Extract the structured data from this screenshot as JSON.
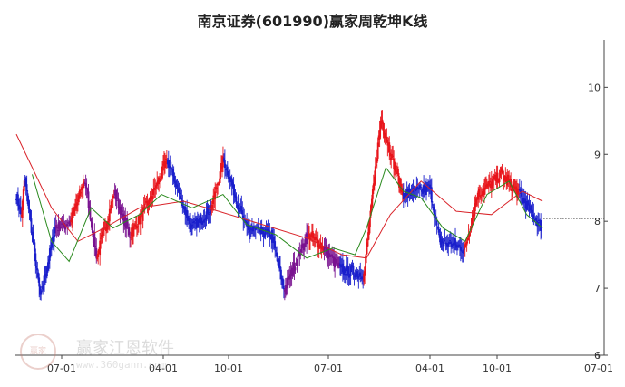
{
  "chart_data": {
    "type": "candlestick",
    "title": "南京证券(601990)赢家周乾坤K线",
    "xlabel": "",
    "ylabel": "",
    "x_ticks": [
      "07-01",
      "04-01",
      "10-01",
      "07-01",
      "04-01",
      "10-01",
      "07-01"
    ],
    "y_ticks": [
      6,
      7,
      8,
      9,
      10
    ],
    "ylim": [
      6,
      10.6
    ],
    "grid": false,
    "colors": {
      "up": "#e8151b",
      "down": "#1a1fcc",
      "neutral": "#7a1390",
      "ma_short": "#2a8a1e",
      "ma_long": "#d9242a",
      "axis": "#444444",
      "last_price_line": "#666666"
    },
    "segments": [
      {
        "x": [
          0,
          6
        ],
        "close": [
          8.4,
          8.1
        ],
        "color": "down"
      },
      {
        "x": [
          6,
          10
        ],
        "close": [
          8.1,
          8.6
        ],
        "color": "up"
      },
      {
        "x": [
          10,
          28
        ],
        "close": [
          8.6,
          6.9
        ],
        "color": "down"
      },
      {
        "x": [
          28,
          45
        ],
        "close": [
          6.9,
          7.9
        ],
        "color": "down"
      },
      {
        "x": [
          45,
          62
        ],
        "close": [
          7.9,
          8.0
        ],
        "color": "neutral"
      },
      {
        "x": [
          62,
          78
        ],
        "close": [
          8.0,
          8.6
        ],
        "color": "up"
      },
      {
        "x": [
          78,
          92
        ],
        "close": [
          8.6,
          7.5
        ],
        "color": "neutral"
      },
      {
        "x": [
          92,
          112
        ],
        "close": [
          7.5,
          8.4
        ],
        "color": "up"
      },
      {
        "x": [
          112,
          130
        ],
        "close": [
          8.4,
          7.8
        ],
        "color": "neutral"
      },
      {
        "x": [
          130,
          152
        ],
        "close": [
          7.8,
          8.3
        ],
        "color": "up"
      },
      {
        "x": [
          152,
          172
        ],
        "close": [
          8.3,
          8.9
        ],
        "color": "up"
      },
      {
        "x": [
          172,
          200
        ],
        "close": [
          8.9,
          7.9
        ],
        "color": "down"
      },
      {
        "x": [
          200,
          222
        ],
        "close": [
          7.9,
          8.2
        ],
        "color": "down"
      },
      {
        "x": [
          222,
          236
        ],
        "close": [
          8.2,
          8.9
        ],
        "color": "up"
      },
      {
        "x": [
          236,
          262
        ],
        "close": [
          8.9,
          7.9
        ],
        "color": "down"
      },
      {
        "x": [
          262,
          290
        ],
        "close": [
          7.9,
          7.8
        ],
        "color": "down"
      },
      {
        "x": [
          290,
          305
        ],
        "close": [
          7.8,
          7.0
        ],
        "color": "down"
      },
      {
        "x": [
          305,
          332
        ],
        "close": [
          7.0,
          7.8
        ],
        "color": "neutral"
      },
      {
        "x": [
          332,
          350
        ],
        "close": [
          7.8,
          7.6
        ],
        "color": "up"
      },
      {
        "x": [
          350,
          368
        ],
        "close": [
          7.6,
          7.3
        ],
        "color": "neutral"
      },
      {
        "x": [
          368,
          395
        ],
        "close": [
          7.3,
          7.2
        ],
        "color": "down"
      },
      {
        "x": [
          395,
          415
        ],
        "close": [
          7.2,
          9.5
        ],
        "color": "up"
      },
      {
        "x": [
          415,
          440
        ],
        "close": [
          9.5,
          8.4
        ],
        "color": "up"
      },
      {
        "x": [
          440,
          470
        ],
        "close": [
          8.4,
          8.5
        ],
        "color": "down"
      },
      {
        "x": [
          470,
          482
        ],
        "close": [
          8.5,
          7.7
        ],
        "color": "down"
      },
      {
        "x": [
          482,
          510
        ],
        "close": [
          7.7,
          7.6
        ],
        "color": "down"
      },
      {
        "x": [
          510,
          525
        ],
        "close": [
          7.6,
          8.4
        ],
        "color": "up"
      },
      {
        "x": [
          525,
          552
        ],
        "close": [
          8.4,
          8.7
        ],
        "color": "up"
      },
      {
        "x": [
          552,
          572
        ],
        "close": [
          8.7,
          8.4
        ],
        "color": "up"
      },
      {
        "x": [
          572,
          598
        ],
        "close": [
          8.4,
          7.9
        ],
        "color": "down"
      }
    ],
    "ma_long": [
      [
        0,
        9.3
      ],
      [
        40,
        8.2
      ],
      [
        70,
        7.7
      ],
      [
        100,
        7.9
      ],
      [
        140,
        8.2
      ],
      [
        190,
        8.3
      ],
      [
        230,
        8.15
      ],
      [
        280,
        7.95
      ],
      [
        330,
        7.75
      ],
      [
        370,
        7.5
      ],
      [
        398,
        7.45
      ],
      [
        425,
        8.1
      ],
      [
        460,
        8.6
      ],
      [
        500,
        8.15
      ],
      [
        540,
        8.1
      ],
      [
        575,
        8.45
      ],
      [
        598,
        8.3
      ]
    ],
    "ma_short": [
      [
        18,
        8.7
      ],
      [
        40,
        7.7
      ],
      [
        60,
        7.4
      ],
      [
        85,
        8.2
      ],
      [
        110,
        7.9
      ],
      [
        140,
        8.1
      ],
      [
        165,
        8.4
      ],
      [
        200,
        8.2
      ],
      [
        235,
        8.4
      ],
      [
        262,
        7.95
      ],
      [
        295,
        7.8
      ],
      [
        330,
        7.45
      ],
      [
        360,
        7.6
      ],
      [
        385,
        7.5
      ],
      [
        398,
        7.9
      ],
      [
        420,
        8.8
      ],
      [
        440,
        8.45
      ],
      [
        460,
        8.35
      ],
      [
        485,
        7.9
      ],
      [
        510,
        7.7
      ],
      [
        535,
        8.4
      ],
      [
        560,
        8.6
      ],
      [
        580,
        8.1
      ],
      [
        598,
        7.9
      ]
    ],
    "last_price": 8.04
  },
  "watermark": {
    "logo_text": "赢家",
    "name": "赢家江恩软件",
    "url": "www.360gann.com"
  }
}
